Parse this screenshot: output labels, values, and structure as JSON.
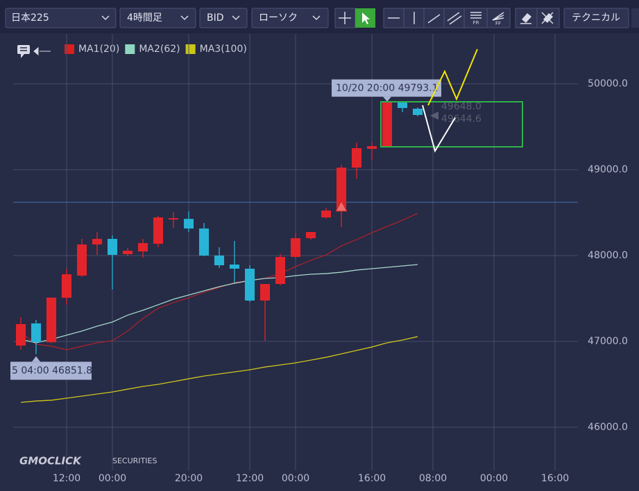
{
  "toolbar": {
    "symbol": "日本225",
    "timeframe": "4時間足",
    "price_side": "BID",
    "chart_style": "ローソク",
    "technical": "テクニカル"
  },
  "logo": {
    "brand": "GMOCLICK",
    "suffix": "SECURITIES"
  },
  "chart_data": {
    "type": "candlestick",
    "categories": [
      null,
      null,
      null,
      "12:00",
      null,
      null,
      "00:00",
      null,
      null,
      null,
      null,
      "20:00",
      null,
      null,
      null,
      "12:00",
      null,
      null,
      "00:00",
      null,
      null,
      null,
      null,
      "16:00",
      null,
      null,
      null,
      "08:00",
      null,
      null,
      null,
      "00:00",
      null,
      null,
      null,
      "16:00",
      null
    ],
    "open": [
      46952,
      47210,
      46990,
      47508,
      47766,
      48129,
      48194,
      48016,
      48048,
      48137,
      48419,
      48427,
      48315,
      48000,
      47895,
      47847,
      47476,
      47669,
      47984,
      48202,
      48444,
      48524,
      49024,
      49242,
      49274,
      49782,
      49710,
      null,
      null,
      null,
      null,
      null,
      null,
      null,
      null,
      null,
      null
    ],
    "high": [
      47282,
      47250,
      47510,
      47847,
      48194,
      48274,
      48234,
      48089,
      48194,
      48460,
      48508,
      48516,
      48379,
      48097,
      48169,
      47887,
      47669,
      48016,
      48266,
      48274,
      48556,
      49056,
      49315,
      49323,
      49793.1,
      49782,
      49726,
      null,
      null,
      null,
      null,
      null,
      null,
      null,
      null,
      null,
      null
    ],
    "low": [
      46903,
      46851.8,
      46980,
      47427,
      47750,
      48008,
      47605,
      47992,
      47976,
      48097,
      48323,
      48274,
      47992,
      47855,
      47685,
      47460,
      47008,
      47653,
      47968,
      48185,
      48427,
      48331,
      48895,
      49105,
      49266,
      49669,
      49621,
      null,
      null,
      null,
      null,
      null,
      null,
      null,
      null,
      null,
      null
    ],
    "close": [
      47202,
      46992,
      47510,
      47782,
      48129,
      48194,
      48008,
      48056,
      48145,
      48444,
      48435,
      48315,
      48000,
      47887,
      47847,
      47476,
      47669,
      47984,
      48202,
      48274,
      48524,
      49024,
      49250,
      49274,
      49782,
      49718,
      49637,
      null,
      null,
      null,
      null,
      null,
      null,
      null,
      null,
      null,
      null
    ],
    "up_color": "#e3242b",
    "down_color": "#27b4d6",
    "series": [
      {
        "name": "MA1(20)",
        "color": "#d9201c",
        "line_color": "#a8232b",
        "values": [
          47105,
          46968,
          46944,
          46903,
          46944,
          46984,
          47008,
          47121,
          47266,
          47387,
          47452,
          47508,
          47573,
          47629,
          47685,
          47710,
          47734,
          47790,
          47871,
          47944,
          48008,
          48113,
          48185,
          48266,
          48339,
          48411,
          48492,
          null,
          null,
          null,
          null,
          null,
          null,
          null,
          null,
          null,
          null
        ]
      },
      {
        "name": "MA2(62)",
        "color": "#8fd8bf",
        "line_color": "#a6d8cc",
        "values": [
          47024,
          46984,
          47024,
          47073,
          47121,
          47177,
          47226,
          47306,
          47363,
          47427,
          47492,
          47540,
          47589,
          47637,
          47677,
          47710,
          47734,
          47742,
          47766,
          47782,
          47790,
          47806,
          47831,
          47847,
          47863,
          47879,
          47895,
          null,
          null,
          null,
          null,
          null,
          null,
          null,
          null,
          null,
          null
        ]
      },
      {
        "name": "MA3(100)",
        "color": "#c8c814",
        "line_color": "#cfc61c",
        "values": [
          46290,
          46306,
          46315,
          46339,
          46363,
          46387,
          46411,
          46444,
          46476,
          46500,
          46532,
          46565,
          46597,
          46621,
          46645,
          46669,
          46702,
          46726,
          46750,
          46782,
          46815,
          46855,
          46895,
          46935,
          46984,
          47016,
          47056,
          null,
          null,
          null,
          null,
          null,
          null,
          null,
          null,
          null,
          null
        ]
      }
    ],
    "hline": 48621,
    "ylim": [
      45500,
      50500
    ],
    "yticks": [
      {
        "value": 46000,
        "label": "46000.0"
      },
      {
        "value": 47000,
        "label": "47000.0"
      },
      {
        "value": 48000,
        "label": "48000.0"
      },
      {
        "value": 49000,
        "label": "49000.0"
      },
      {
        "value": 50000,
        "label": "50000.0"
      }
    ],
    "grid": true,
    "high_label": "10/20 20:00 49793.1",
    "low_label": "5 04:00 46851.8",
    "price_labels": [
      "49648.0",
      "49644.6"
    ]
  }
}
